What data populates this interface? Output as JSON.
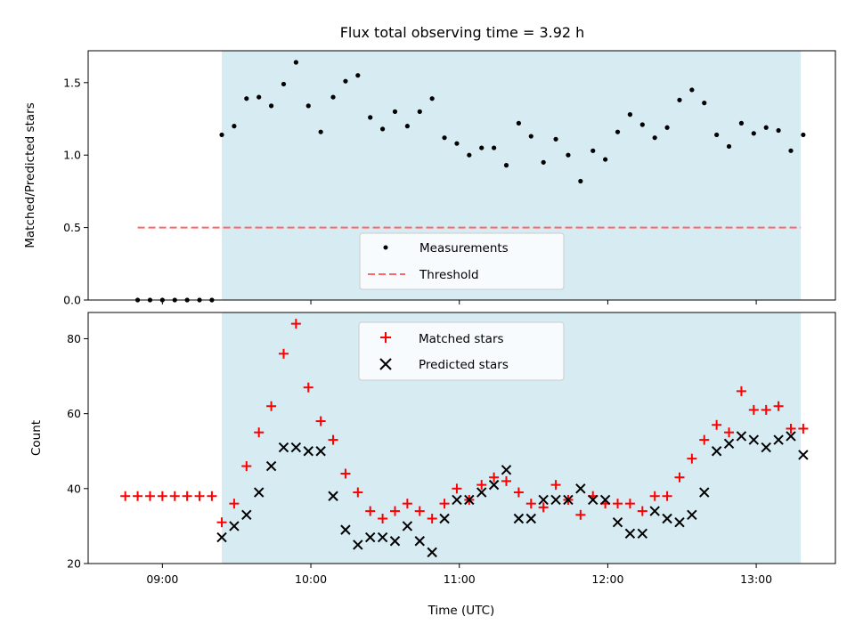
{
  "chart_data": [
    {
      "type": "scatter",
      "title": "Flux total observing time = 3.92 h",
      "ylabel": "Matched/Predicted stars",
      "ylim": [
        0,
        1.72
      ],
      "yticks": [
        "0.0",
        "0.5",
        "1.0",
        "1.5"
      ],
      "xlim": [
        "08:30",
        "13:32"
      ],
      "shaded_region": {
        "start": "09:24",
        "end": "13:18",
        "color": "#add8e6"
      },
      "legend": {
        "placement": "lower center",
        "entries": [
          "Measurements",
          "Threshold"
        ]
      },
      "threshold": {
        "name": "Threshold",
        "value": 0.5,
        "x_start": "08:50",
        "x_end": "13:18",
        "color": "#ff6666"
      },
      "series": [
        {
          "name": "Measurements",
          "color": "#000000",
          "x": [
            "08:50",
            "08:55",
            "09:00",
            "09:05",
            "09:10",
            "09:15",
            "09:20",
            "09:24",
            "09:29",
            "09:34",
            "09:39",
            "09:44",
            "09:49",
            "09:54",
            "09:59",
            "10:04",
            "10:09",
            "10:14",
            "10:19",
            "10:24",
            "10:29",
            "10:34",
            "10:39",
            "10:44",
            "10:49",
            "10:54",
            "10:59",
            "11:04",
            "11:09",
            "11:14",
            "11:19",
            "11:24",
            "11:29",
            "11:34",
            "11:39",
            "11:44",
            "11:49",
            "11:54",
            "11:59",
            "12:04",
            "12:09",
            "12:14",
            "12:19",
            "12:24",
            "12:29",
            "12:34",
            "12:39",
            "12:44",
            "12:49",
            "12:54",
            "12:59",
            "13:04",
            "13:09",
            "13:14",
            "13:19"
          ],
          "y": [
            0,
            0,
            0,
            0,
            0,
            0,
            0,
            1.14,
            1.2,
            1.39,
            1.4,
            1.34,
            1.49,
            1.64,
            1.34,
            1.16,
            1.4,
            1.51,
            1.55,
            1.26,
            1.18,
            1.3,
            1.2,
            1.3,
            1.39,
            1.12,
            1.08,
            1.0,
            1.05,
            1.05,
            0.93,
            1.22,
            1.13,
            0.95,
            1.11,
            1.0,
            0.82,
            1.03,
            0.97,
            1.16,
            1.28,
            1.21,
            1.12,
            1.19,
            1.38,
            1.45,
            1.36,
            1.14,
            1.06,
            1.22,
            1.15,
            1.19,
            1.17,
            1.03,
            1.14
          ]
        }
      ]
    },
    {
      "type": "scatter",
      "xlabel": "Time (UTC)",
      "ylabel": "Count",
      "ylim": [
        20,
        87
      ],
      "yticks": [
        "20",
        "40",
        "60",
        "80"
      ],
      "xlim": [
        "08:30",
        "13:32"
      ],
      "xticks": [
        "09:00",
        "10:00",
        "11:00",
        "12:00",
        "13:00"
      ],
      "shaded_region": {
        "start": "09:24",
        "end": "13:18",
        "color": "#add8e6"
      },
      "legend": {
        "placement": "upper center",
        "entries": [
          "Matched stars",
          "Predicted stars"
        ]
      },
      "series": [
        {
          "name": "Matched stars",
          "marker": "plus",
          "color": "#ff0000",
          "x": [
            "08:45",
            "08:50",
            "08:55",
            "09:00",
            "09:05",
            "09:10",
            "09:15",
            "09:20",
            "09:24",
            "09:29",
            "09:34",
            "09:39",
            "09:44",
            "09:49",
            "09:54",
            "09:59",
            "10:04",
            "10:09",
            "10:14",
            "10:19",
            "10:24",
            "10:29",
            "10:34",
            "10:39",
            "10:44",
            "10:49",
            "10:54",
            "10:59",
            "11:04",
            "11:09",
            "11:14",
            "11:19",
            "11:24",
            "11:29",
            "11:34",
            "11:39",
            "11:44",
            "11:49",
            "11:54",
            "11:59",
            "12:04",
            "12:09",
            "12:14",
            "12:19",
            "12:24",
            "12:29",
            "12:34",
            "12:39",
            "12:44",
            "12:49",
            "12:54",
            "12:59",
            "13:04",
            "13:09",
            "13:14",
            "13:19"
          ],
          "y": [
            38,
            38,
            38,
            38,
            38,
            38,
            38,
            38,
            31,
            36,
            46,
            55,
            62,
            76,
            84,
            67,
            58,
            53,
            44,
            39,
            34,
            32,
            34,
            36,
            34,
            32,
            36,
            40,
            37,
            41,
            43,
            42,
            39,
            36,
            35,
            41,
            37,
            33,
            38,
            36,
            36,
            36,
            34,
            38,
            38,
            43,
            48,
            53,
            57,
            55,
            66,
            61,
            61,
            62,
            56,
            56
          ]
        },
        {
          "name": "Predicted stars",
          "marker": "x",
          "color": "#000000",
          "x": [
            "09:24",
            "09:29",
            "09:34",
            "09:39",
            "09:44",
            "09:49",
            "09:54",
            "09:59",
            "10:04",
            "10:09",
            "10:14",
            "10:19",
            "10:24",
            "10:29",
            "10:34",
            "10:39",
            "10:44",
            "10:49",
            "10:54",
            "10:59",
            "11:04",
            "11:09",
            "11:14",
            "11:19",
            "11:24",
            "11:29",
            "11:34",
            "11:39",
            "11:44",
            "11:49",
            "11:54",
            "11:59",
            "12:04",
            "12:09",
            "12:14",
            "12:19",
            "12:24",
            "12:29",
            "12:34",
            "12:39",
            "12:44",
            "12:49",
            "12:54",
            "12:59",
            "13:04",
            "13:09",
            "13:14",
            "13:19"
          ],
          "y": [
            27,
            30,
            33,
            39,
            46,
            51,
            51,
            50,
            50,
            38,
            29,
            25,
            27,
            27,
            26,
            30,
            26,
            23,
            32,
            37,
            37,
            39,
            41,
            45,
            32,
            32,
            37,
            37,
            37,
            40,
            37,
            37,
            31,
            28,
            28,
            34,
            32,
            31,
            33,
            39,
            50,
            52,
            54,
            53,
            51,
            53,
            54,
            49
          ]
        }
      ]
    }
  ]
}
